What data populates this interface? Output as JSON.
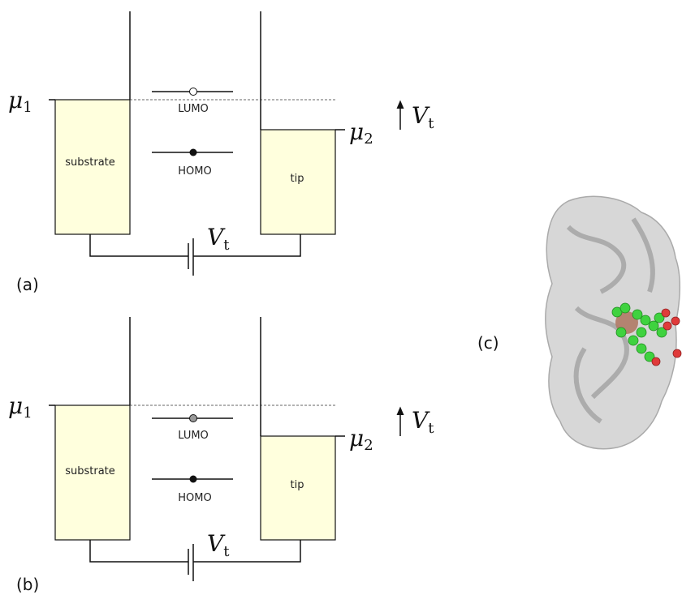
{
  "panels": [
    {
      "label": "(a)",
      "substrate": "substrate",
      "tip": "tip",
      "lumo": "LUMO",
      "homo": "HOMO",
      "mu1": {
        "symbol": "μ",
        "subscript": "1"
      },
      "mu2": {
        "symbol": "μ",
        "subscript": "2"
      },
      "bias_arrow": {
        "symbol": "V",
        "subscript": "t"
      },
      "bias_battery": {
        "symbol": "V",
        "subscript": "t"
      }
    },
    {
      "label": "(b)",
      "substrate": "substrate",
      "tip": "tip",
      "lumo": "LUMO",
      "homo": "HOMO",
      "mu1": {
        "symbol": "μ",
        "subscript": "1"
      },
      "mu2": {
        "symbol": "μ",
        "subscript": "2"
      },
      "bias_arrow": {
        "symbol": "V",
        "subscript": "t"
      },
      "bias_battery": {
        "symbol": "V",
        "subscript": "t"
      }
    }
  ],
  "panel_c": {
    "label": "(c)"
  }
}
